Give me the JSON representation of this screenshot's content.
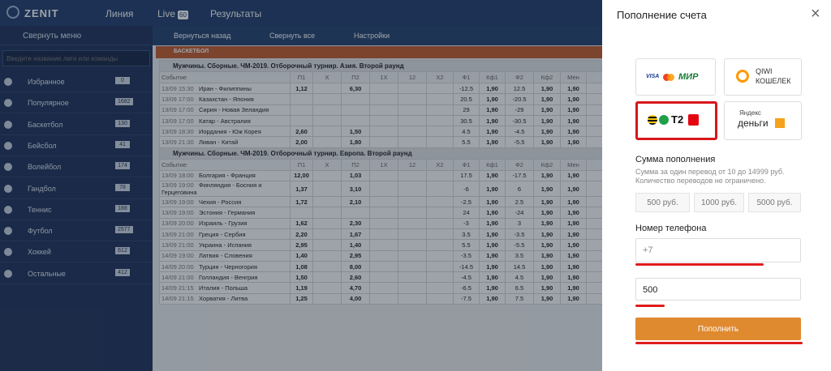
{
  "header": {
    "logo": "ZENIT",
    "nav": [
      {
        "label": "Линия"
      },
      {
        "label": "Live",
        "badge": 60
      },
      {
        "label": "Результаты"
      }
    ]
  },
  "sidebar": {
    "collapse": "Свернуть меню",
    "search_placeholder": "Введите название лиги или команды",
    "sports": [
      {
        "name": "Избранное",
        "count": 0
      },
      {
        "name": "Популярное",
        "count": 1682
      },
      {
        "name": "Баскетбол",
        "count": 130
      },
      {
        "name": "Бейсбол",
        "count": 41
      },
      {
        "name": "Волейбол",
        "count": 174
      },
      {
        "name": "Гандбол",
        "count": 78
      },
      {
        "name": "Теннис",
        "count": 188
      },
      {
        "name": "Футбол",
        "count": 2577
      },
      {
        "name": "Хоккей",
        "count": 612
      },
      {
        "name": "Остальные",
        "count": 412
      }
    ]
  },
  "toolbar": [
    "Вернуться назад",
    "Свернуть все",
    "Настройки"
  ],
  "sport": "БАСКЕТБОЛ",
  "columns": [
    "Событие",
    "П1",
    "Х",
    "П2",
    "1Х",
    "12",
    "Х2",
    "Ф1",
    "Кф1",
    "Ф2",
    "Кф2",
    "Мен"
  ],
  "groups": [
    {
      "title": "Мужчины. Сборные. ЧМ-2019. Отборочный турнир. Азия. Второй раунд",
      "rows": [
        {
          "time": "13/09 15:30",
          "event": "Иран - Филиппины",
          "odds": [
            "1,12",
            null,
            "6,30",
            null,
            null,
            null,
            "-12.5",
            "1,90",
            "12.5",
            "1,90",
            "1,90"
          ]
        },
        {
          "time": "13/09 17:00",
          "event": "Казахстан - Япония",
          "odds": [
            null,
            null,
            null,
            null,
            null,
            null,
            "20.5",
            "1,90",
            "-20.5",
            "1,90",
            "1,90"
          ]
        },
        {
          "time": "13/09 17:00",
          "event": "Сирия - Новая Зеландия",
          "odds": [
            null,
            null,
            null,
            null,
            null,
            null,
            "29",
            "1,90",
            "-29",
            "1,90",
            "1,90"
          ]
        },
        {
          "time": "13/09 17:00",
          "event": "Катар - Австралия",
          "odds": [
            null,
            null,
            null,
            null,
            null,
            null,
            "30.5",
            "1,90",
            "-30.5",
            "1,90",
            "1,90"
          ]
        },
        {
          "time": "13/09 18:30",
          "event": "Иордания - Юж Корея",
          "odds": [
            "2,60",
            null,
            "1,50",
            null,
            null,
            null,
            "4.5",
            "1,90",
            "-4.5",
            "1,90",
            "1,90"
          ]
        },
        {
          "time": "13/09 21:30",
          "event": "Ливан - Китай",
          "odds": [
            "2,00",
            null,
            "1,80",
            null,
            null,
            null,
            "5.5",
            "1,90",
            "-5.5",
            "1,90",
            "1,90"
          ]
        }
      ]
    },
    {
      "title": "Мужчины. Сборные. ЧМ-2019. Отборочный турнир. Европа. Второй раунд",
      "rows": [
        {
          "time": "13/09 18:00",
          "event": "Болгария - Франция",
          "odds": [
            "12,00",
            null,
            "1,03",
            null,
            null,
            null,
            "17.5",
            "1,90",
            "-17.5",
            "1,90",
            "1,90"
          ]
        },
        {
          "time": "13/09 19:00",
          "event": "Финляндия - Босния и Герцеговина",
          "odds": [
            "1,37",
            null,
            "3,10",
            null,
            null,
            null,
            "-6",
            "1,90",
            "6",
            "1,90",
            "1,90"
          ]
        },
        {
          "time": "13/09 19:00",
          "event": "Чехия - Россия",
          "odds": [
            "1,72",
            null,
            "2,10",
            null,
            null,
            null,
            "-2.5",
            "1,90",
            "2.5",
            "1,90",
            "1,90"
          ]
        },
        {
          "time": "13/09 19:00",
          "event": "Эстония - Германия",
          "odds": [
            null,
            null,
            null,
            null,
            null,
            null,
            "24",
            "1,90",
            "-24",
            "1,90",
            "1,90"
          ]
        },
        {
          "time": "13/09 20:00",
          "event": "Израиль - Грузия",
          "odds": [
            "1,62",
            null,
            "2,30",
            null,
            null,
            null,
            "-3",
            "1,90",
            "3",
            "1,90",
            "1,90"
          ]
        },
        {
          "time": "13/09 21:00",
          "event": "Греция - Сербия",
          "odds": [
            "2,20",
            null,
            "1,67",
            null,
            null,
            null,
            "3.5",
            "1,90",
            "-3.5",
            "1,90",
            "1,90"
          ]
        },
        {
          "time": "13/09 21:00",
          "event": "Украина - Испания",
          "odds": [
            "2,95",
            null,
            "1,40",
            null,
            null,
            null,
            "5.5",
            "1,90",
            "-5.5",
            "1,90",
            "1,90"
          ]
        },
        {
          "time": "14/09 19:00",
          "event": "Латвия - Словения",
          "odds": [
            "1,40",
            null,
            "2,95",
            null,
            null,
            null,
            "-3.5",
            "1,90",
            "3.5",
            "1,90",
            "1,90"
          ]
        },
        {
          "time": "14/09 20:00",
          "event": "Турция - Черногория",
          "odds": [
            "1,08",
            null,
            "8,00",
            null,
            null,
            null,
            "-14.5",
            "1,90",
            "14.5",
            "1,90",
            "1,90"
          ]
        },
        {
          "time": "14/09 21:00",
          "event": "Голландия - Венгрия",
          "odds": [
            "1,50",
            null,
            "2,60",
            null,
            null,
            null,
            "-4.5",
            "1,90",
            "4.5",
            "1,90",
            "1,90"
          ]
        },
        {
          "time": "14/09 21:15",
          "event": "Италия - Польша",
          "odds": [
            "1,19",
            null,
            "4,70",
            null,
            null,
            null,
            "-6.5",
            "1,90",
            "6.5",
            "1,90",
            "1,90"
          ]
        },
        {
          "time": "14/09 21:15",
          "event": "Хорватия - Литва",
          "odds": [
            "1,25",
            null,
            "4,00",
            null,
            null,
            null,
            "-7.5",
            "1,90",
            "7.5",
            "1,90",
            "1,90"
          ]
        }
      ]
    }
  ],
  "deposit": {
    "title": "Пополнение счета",
    "logos": {
      "visa": "VISA",
      "mir": "МИР",
      "qiwi": "QIWI",
      "qiwi_sub": "КОШЕЛЕК",
      "tele2": "T2",
      "yandex": "Яндекс",
      "yandex_sub": "деньги"
    },
    "amount_label": "Сумма пополнения",
    "amount_hint": [
      "Сумма за один перевод от 10 до 14999 руб.",
      "Количество переводов не ограничено."
    ],
    "presets": [
      "500 руб.",
      "1000 руб.",
      "5000 руб."
    ],
    "phone_label": "Номер телефона",
    "phone_placeholder": "+7",
    "amount_value": "500",
    "submit": "Пополнить"
  }
}
